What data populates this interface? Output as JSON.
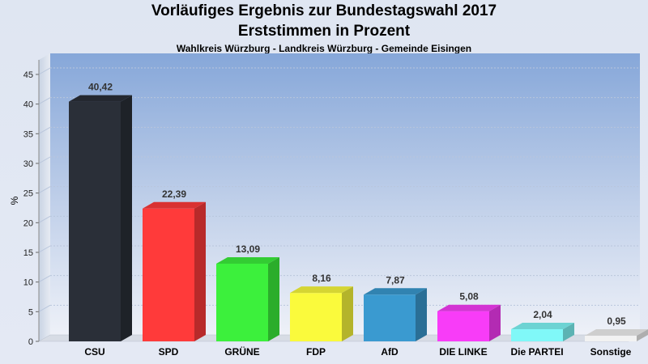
{
  "chart_data": {
    "type": "bar",
    "title": "Vorläufiges Ergebnis zur Bundestagswahl 2017",
    "subtitle": "Erststimmen in Prozent",
    "subsubtitle": "Wahlkreis Würzburg - Landkreis Würzburg - Gemeinde Eisingen",
    "xlabel": "",
    "ylabel": "%",
    "ylim": [
      0,
      45
    ],
    "yticks": [
      0,
      5,
      10,
      15,
      20,
      25,
      30,
      35,
      40,
      45
    ],
    "grid": true,
    "categories": [
      "CSU",
      "SPD",
      "GRÜNE",
      "FDP",
      "AfD",
      "DIE LINKE",
      "Die PARTEI",
      "Sonstige"
    ],
    "values": [
      40.42,
      22.39,
      13.09,
      8.16,
      7.87,
      5.08,
      2.04,
      0.95
    ],
    "value_labels": [
      "40,42",
      "22,39",
      "13,09",
      "8,16",
      "7,87",
      "5,08",
      "2,04",
      "0,95"
    ],
    "colors": [
      "#2a2f38",
      "#ff3a3a",
      "#3cf03c",
      "#fafa3c",
      "#3a9ad0",
      "#f83cf8",
      "#80f8f8",
      "#f2f2f2"
    ]
  }
}
